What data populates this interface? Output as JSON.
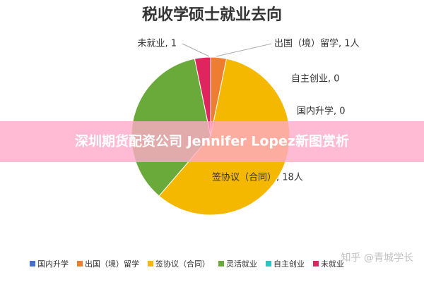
{
  "chart_data": {
    "type": "pie",
    "title": "税收学硕士就业去向",
    "categories": [
      "国内升学",
      "出国（境）留学",
      "签协议（合同）",
      "灵活就业",
      "自主创业",
      "未就业"
    ],
    "values": [
      0,
      1,
      18,
      11,
      0,
      1
    ],
    "value_labels": [
      "国内升学, 0",
      "出国（境）留学, 1人",
      "签协议（合同）, 18人",
      null,
      "自主创业, 0",
      "未就业, 1"
    ],
    "colors": [
      "#4472c4",
      "#ed7d31",
      "#f5b800",
      "#6aaa3a",
      "#2ec4c0",
      "#e0245e"
    ],
    "legend": "bottom"
  },
  "overlay": {
    "banner": "深圳期货配资公司 Jennifer Lopez新图赏析",
    "watermark": "知乎 @青城学长"
  }
}
